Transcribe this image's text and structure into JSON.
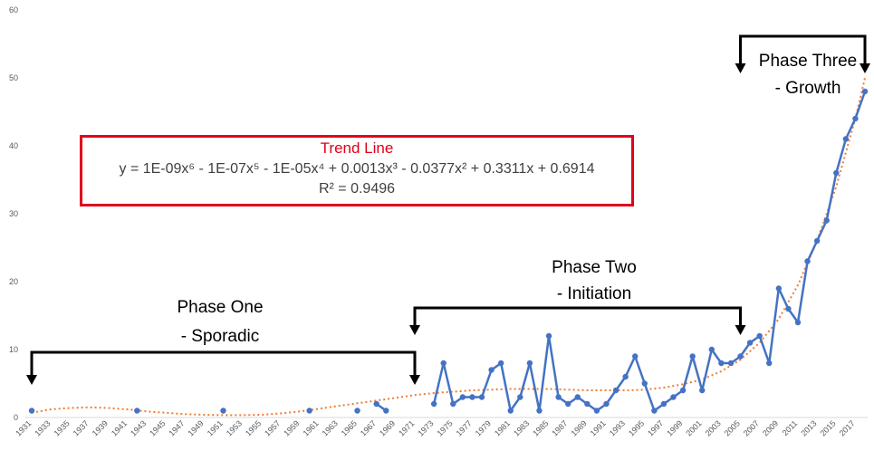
{
  "chart_data": {
    "type": "line",
    "title": "",
    "xlabel": "",
    "ylabel": "",
    "ylim": [
      0,
      60
    ],
    "yticks": [
      0,
      10,
      20,
      30,
      40,
      50,
      60
    ],
    "xlim": [
      1931,
      2018
    ],
    "xtick_labels": [
      "1931",
      "1933",
      "1935",
      "1937",
      "1939",
      "1941",
      "1943",
      "1945",
      "1947",
      "1949",
      "1951",
      "1953",
      "1955",
      "1957",
      "1959",
      "1961",
      "1963",
      "1965",
      "1967",
      "1969",
      "1971",
      "1973",
      "1975",
      "1977",
      "1979",
      "1981",
      "1983",
      "1985",
      "1987",
      "1989",
      "1991",
      "1993",
      "1995",
      "1997",
      "1999",
      "2001",
      "2003",
      "2005",
      "2007",
      "2009",
      "2011",
      "2013",
      "2015",
      "2017"
    ],
    "grid": false,
    "colors": {
      "series": "#4472c4",
      "trend": "#ed7d31",
      "box": "#e0001b"
    },
    "series": [
      {
        "points": [
          [
            1931,
            1
          ],
          [
            1942,
            1
          ],
          [
            1951,
            1
          ],
          [
            1960,
            1
          ],
          [
            1965,
            1
          ],
          [
            1967,
            2
          ],
          [
            1968,
            1
          ],
          [
            1973,
            2
          ],
          [
            1974,
            8
          ],
          [
            1975,
            2
          ],
          [
            1976,
            3
          ],
          [
            1977,
            3
          ],
          [
            1978,
            3
          ],
          [
            1979,
            7
          ],
          [
            1980,
            8
          ],
          [
            1981,
            1
          ],
          [
            1982,
            3
          ],
          [
            1983,
            8
          ],
          [
            1984,
            1
          ],
          [
            1985,
            12
          ],
          [
            1986,
            3
          ],
          [
            1987,
            2
          ],
          [
            1988,
            3
          ],
          [
            1989,
            2
          ],
          [
            1990,
            1
          ],
          [
            1991,
            2
          ],
          [
            1992,
            4
          ],
          [
            1993,
            6
          ],
          [
            1994,
            9
          ],
          [
            1995,
            5
          ],
          [
            1996,
            1
          ],
          [
            1997,
            2
          ],
          [
            1998,
            3
          ],
          [
            1999,
            4
          ],
          [
            2000,
            9
          ],
          [
            2001,
            4
          ],
          [
            2002,
            10
          ],
          [
            2003,
            8
          ],
          [
            2004,
            8
          ],
          [
            2005,
            9
          ],
          [
            2006,
            11
          ],
          [
            2007,
            12
          ],
          [
            2008,
            8
          ],
          [
            2009,
            19
          ],
          [
            2010,
            16
          ],
          [
            2011,
            14
          ],
          [
            2012,
            23
          ],
          [
            2013,
            26
          ],
          [
            2014,
            29
          ],
          [
            2015,
            36
          ],
          [
            2016,
            41
          ],
          [
            2017,
            44
          ],
          [
            2018,
            48
          ]
        ]
      }
    ],
    "trendline": {
      "kind": "polynomial-6",
      "points": [
        [
          1931,
          0.7
        ],
        [
          1933,
          1.2
        ],
        [
          1935,
          1.4
        ],
        [
          1937,
          1.5
        ],
        [
          1939,
          1.4
        ],
        [
          1941,
          1.2
        ],
        [
          1943,
          0.9
        ],
        [
          1945,
          0.7
        ],
        [
          1947,
          0.5
        ],
        [
          1949,
          0.4
        ],
        [
          1951,
          0.35
        ],
        [
          1953,
          0.35
        ],
        [
          1955,
          0.4
        ],
        [
          1957,
          0.6
        ],
        [
          1959,
          0.9
        ],
        [
          1961,
          1.3
        ],
        [
          1963,
          1.7
        ],
        [
          1965,
          2.1
        ],
        [
          1967,
          2.5
        ],
        [
          1969,
          2.9
        ],
        [
          1971,
          3.3
        ],
        [
          1973,
          3.6
        ],
        [
          1975,
          3.8
        ],
        [
          1977,
          4.0
        ],
        [
          1979,
          4.1
        ],
        [
          1981,
          4.2
        ],
        [
          1983,
          4.2
        ],
        [
          1985,
          4.2
        ],
        [
          1987,
          4.1
        ],
        [
          1989,
          4.0
        ],
        [
          1991,
          4.0
        ],
        [
          1993,
          4.0
        ],
        [
          1995,
          4.1
        ],
        [
          1997,
          4.4
        ],
        [
          1999,
          4.9
        ],
        [
          2001,
          5.6
        ],
        [
          2003,
          6.8
        ],
        [
          2005,
          8.5
        ],
        [
          2007,
          11
        ],
        [
          2009,
          14.5
        ],
        [
          2011,
          19.5
        ],
        [
          2013,
          26
        ],
        [
          2015,
          34
        ],
        [
          2017,
          44
        ],
        [
          2018,
          50
        ]
      ]
    }
  },
  "trend_box": {
    "title": "Trend Line",
    "equation": "y = 1E-09x⁶ - 1E-07x⁵ - 1E-05x⁴ + 0.0013x³ - 0.0377x² + 0.3311x + 0.6914",
    "r_squared": "R² = 0.9496"
  },
  "phases": {
    "one": {
      "line1": "Phase One",
      "line2": "- Sporadic",
      "start": 1931,
      "end": 1971
    },
    "two": {
      "line1": "Phase Two",
      "line2": "- Initiation",
      "start": 1971,
      "end": 2005
    },
    "three": {
      "line1": "Phase Three",
      "line2": "- Growth",
      "start": 2005,
      "end": 2018
    }
  }
}
